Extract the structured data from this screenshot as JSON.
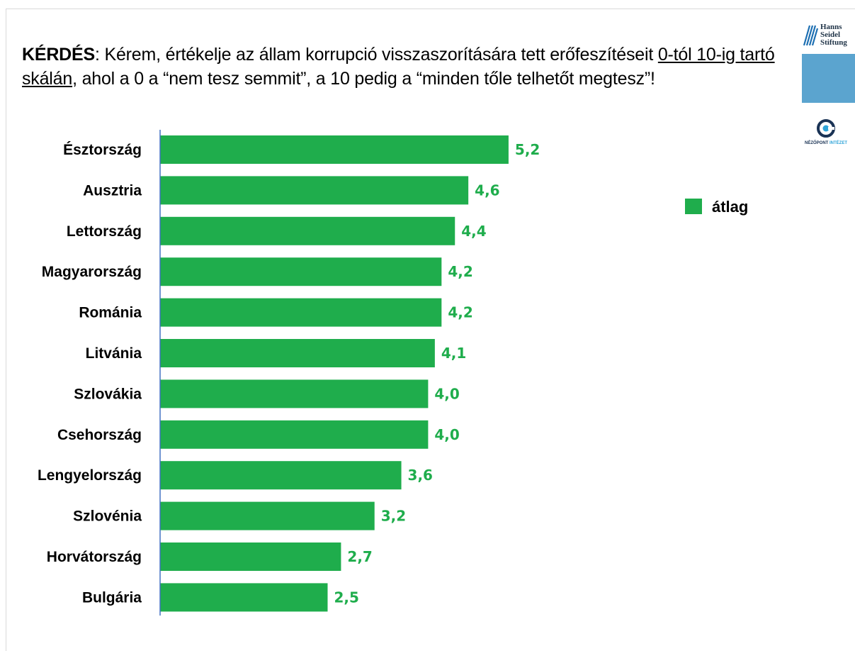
{
  "question": {
    "label": "KÉRDÉS",
    "text_1": ": Kérem, értékelje az állam korrupció visszaszorítására tett erőfeszítéseit ",
    "underlined": "0-tól 10-ig tartó skálán",
    "text_2": ", ahol a 0 a “nem tesz semmit”, a 10 pedig a “minden tőle telhetőt megtesz”!"
  },
  "logos": {
    "hss_lines": [
      "Hanns",
      "Seidel",
      "Stiftung"
    ],
    "nezopont_a": "NÉZŐPONT",
    "nezopont_b": " INTÉZET"
  },
  "colors": {
    "bar": "#1fad4c",
    "axis": "#4472c4",
    "logo_box": "#5ba4cf"
  },
  "chart_data": {
    "type": "bar",
    "orientation": "horizontal",
    "categories": [
      "Észtország",
      "Ausztria",
      "Lettország",
      "Magyarország",
      "Románia",
      "Litvánia",
      "Szlovákia",
      "Csehország",
      "Lengyelország",
      "Szlovénia",
      "Horvátország",
      "Bulgária"
    ],
    "series": [
      {
        "name": "átlag",
        "values": [
          5.2,
          4.6,
          4.4,
          4.2,
          4.2,
          4.1,
          4.0,
          4.0,
          3.6,
          3.2,
          2.7,
          2.5
        ],
        "labels": [
          "5,2",
          "4,6",
          "4,4",
          "4,2",
          "4,2",
          "4,1",
          "4,0",
          "4,0",
          "3,6",
          "3,2",
          "2,7",
          "2,5"
        ]
      }
    ],
    "xlim": [
      0,
      10
    ],
    "legend": "right",
    "grid": false
  }
}
